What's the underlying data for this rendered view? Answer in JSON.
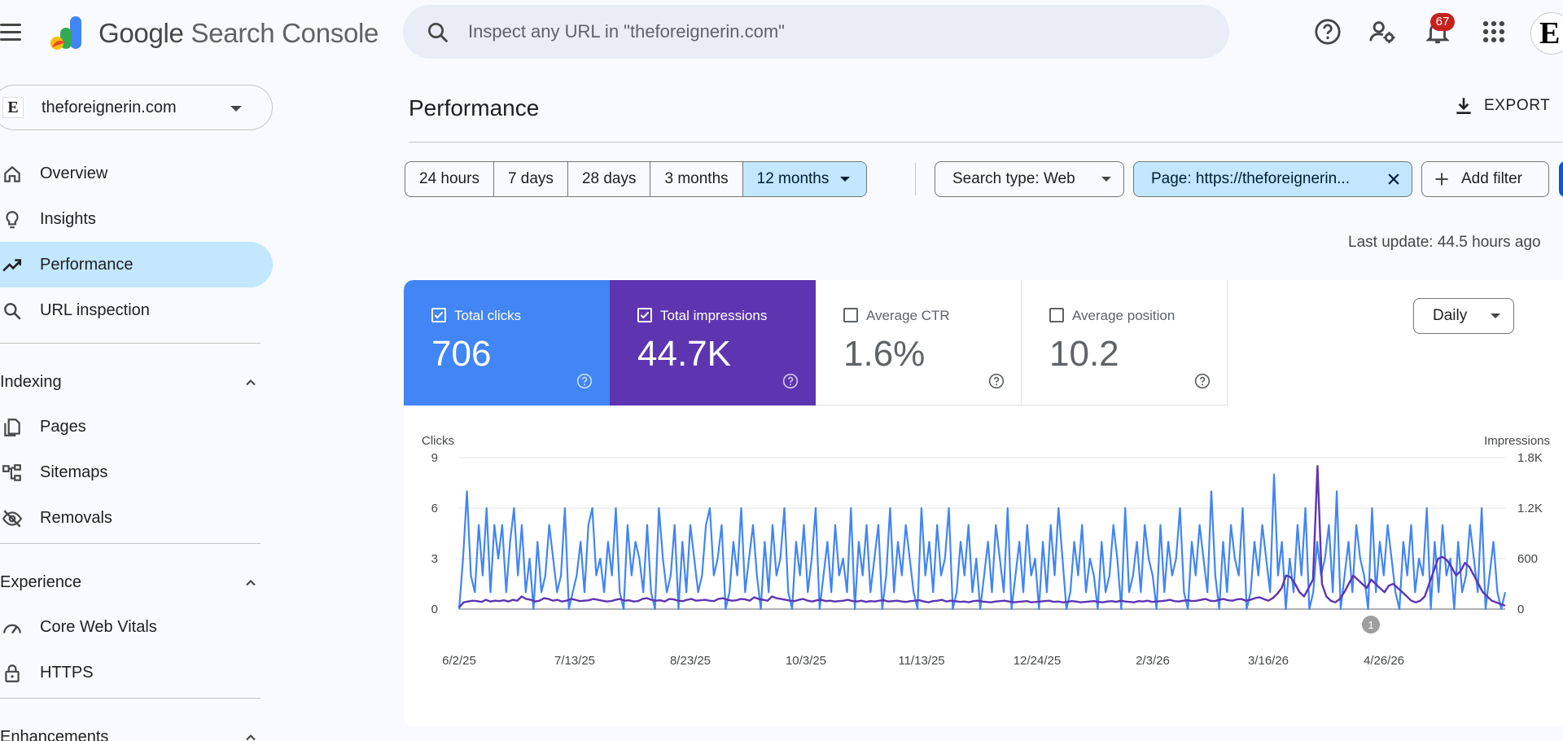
{
  "header": {
    "brand_google": "Google",
    "brand_product": "Search Console",
    "search_placeholder": "Inspect any URL in \"theforeignerin.com\"",
    "notification_count": "67",
    "avatar_text": "E"
  },
  "sidebar": {
    "property": "theforeignerin.com",
    "property_favicon": "E",
    "items_top": [
      {
        "label": "Overview",
        "icon": "home-icon"
      },
      {
        "label": "Insights",
        "icon": "lightbulb-icon"
      },
      {
        "label": "Performance",
        "icon": "trending-up-icon",
        "active": true
      },
      {
        "label": "URL inspection",
        "icon": "search-icon"
      }
    ],
    "sections": [
      {
        "title": "Indexing",
        "items": [
          {
            "label": "Pages",
            "icon": "pages-icon"
          },
          {
            "label": "Sitemaps",
            "icon": "sitemap-icon"
          },
          {
            "label": "Removals",
            "icon": "eye-off-icon"
          }
        ]
      },
      {
        "title": "Experience",
        "items": [
          {
            "label": "Core Web Vitals",
            "icon": "speed-icon"
          },
          {
            "label": "HTTPS",
            "icon": "lock-icon"
          }
        ]
      },
      {
        "title": "Enhancements",
        "items": []
      }
    ]
  },
  "main": {
    "title": "Performance",
    "export_label": "EXPORT",
    "date_ranges": [
      "24 hours",
      "7 days",
      "28 days",
      "3 months",
      "12 months"
    ],
    "selected_range": "12 months",
    "search_type": "Search type: Web",
    "page_filter": "Page: https://theforeignerin...",
    "add_filter": "Add filter",
    "last_update": "Last update: 44.5 hours ago",
    "granularity": "Daily",
    "metrics": [
      {
        "label": "Total clicks",
        "value": "706",
        "checked": true,
        "color": "#4285f4"
      },
      {
        "label": "Total impressions",
        "value": "44.7K",
        "checked": true,
        "color": "#5e35b1"
      },
      {
        "label": "Average CTR",
        "value": "1.6%",
        "checked": false
      },
      {
        "label": "Average position",
        "value": "10.2",
        "checked": false
      }
    ]
  },
  "chart_data": {
    "type": "line",
    "left_axis_title": "Clicks",
    "right_axis_title": "Impressions",
    "left_ticks": [
      "0",
      "3",
      "6",
      "9"
    ],
    "right_ticks": [
      "0",
      "600",
      "1.2K",
      "1.8K"
    ],
    "ylim_left": [
      0,
      9
    ],
    "ylim_right": [
      0,
      1800
    ],
    "x_ticks": [
      "6/2/25",
      "7/13/25",
      "8/23/25",
      "10/3/25",
      "11/13/25",
      "12/24/25",
      "2/3/26",
      "3/16/26",
      "4/26/26"
    ],
    "annotation": "1",
    "grid": true,
    "series": [
      {
        "name": "Clicks",
        "color": "#4285f4",
        "axis": "left",
        "values": [
          0,
          3,
          7,
          2,
          1,
          5,
          2,
          6,
          1,
          5,
          3,
          5,
          1,
          4,
          6,
          2,
          5,
          1,
          3,
          0,
          4,
          1,
          2,
          5,
          3,
          1,
          2,
          6,
          0,
          1,
          2,
          4,
          1,
          5,
          6,
          2,
          3,
          1,
          4,
          2,
          6,
          1,
          0,
          5,
          2,
          4,
          3,
          1,
          5,
          1,
          0,
          6,
          3,
          1,
          2,
          5,
          0,
          4,
          1,
          5,
          3,
          1,
          2,
          5,
          6,
          2,
          3,
          5,
          0,
          1,
          4,
          2,
          6,
          1,
          3,
          5,
          2,
          0,
          4,
          1,
          5,
          2,
          3,
          6,
          1,
          0,
          4,
          2,
          5,
          1,
          3,
          6,
          0,
          2,
          4,
          1,
          5,
          2,
          3,
          1,
          6,
          0,
          4,
          2,
          5,
          1,
          3,
          5,
          0,
          2,
          6,
          1,
          4,
          2,
          5,
          3,
          1,
          0,
          6,
          2,
          4,
          1,
          5,
          2,
          3,
          6,
          0,
          1,
          4,
          2,
          5,
          1,
          3,
          0,
          2,
          4,
          1,
          5,
          3,
          1,
          6,
          0,
          2,
          4,
          1,
          5,
          2,
          3,
          0,
          4,
          1,
          5,
          2,
          6,
          3,
          0,
          1,
          4,
          2,
          5,
          1,
          3,
          2,
          0,
          4,
          1,
          2,
          5,
          3,
          0,
          6,
          1,
          2,
          4,
          1,
          5,
          3,
          2,
          0,
          5,
          1,
          4,
          2,
          3,
          6,
          1,
          0,
          4,
          2,
          5,
          3,
          1,
          7,
          2,
          0,
          4,
          1,
          5,
          3,
          2,
          6,
          0,
          1,
          4,
          2,
          5,
          3,
          1,
          8,
          2,
          4,
          0,
          3,
          1,
          5,
          2,
          6,
          0,
          1,
          4,
          2,
          3,
          5,
          1,
          7,
          0,
          2,
          4,
          1,
          5,
          3,
          2,
          0,
          6,
          1,
          4,
          2,
          5,
          3,
          1,
          0,
          4,
          2,
          5,
          1,
          3,
          2,
          6,
          0,
          4,
          1,
          5,
          2,
          3,
          0,
          4,
          1,
          2,
          5,
          3,
          1,
          6,
          0,
          2,
          4,
          1,
          0,
          1
        ]
      },
      {
        "name": "Impressions",
        "color": "#5e35b1",
        "axis": "right",
        "values": [
          20,
          80,
          90,
          100,
          95,
          85,
          110,
          90,
          100,
          95,
          105,
          90,
          110,
          100,
          150,
          120,
          110,
          90,
          100,
          130,
          120,
          100,
          110,
          90,
          100,
          120,
          110,
          95,
          100,
          105,
          120,
          110,
          100,
          90,
          95,
          110,
          120,
          100,
          105,
          90,
          95,
          120,
          130,
          110,
          100,
          105,
          90,
          120,
          115,
          100,
          95,
          110,
          120,
          100,
          105,
          110,
          100,
          95,
          120,
          130,
          110,
          100,
          105,
          120,
          115,
          100,
          140,
          120,
          110,
          100,
          150,
          130,
          120,
          110,
          100,
          95,
          110,
          120,
          100,
          90,
          105,
          110,
          95,
          100,
          90,
          95,
          100,
          110,
          95,
          90,
          100,
          85,
          95,
          90,
          100,
          105,
          90,
          95,
          100,
          90,
          85,
          95,
          100,
          105,
          90,
          80,
          95,
          100,
          110,
          90,
          100,
          95,
          85,
          90,
          80,
          95,
          100,
          90,
          85,
          80,
          90,
          95,
          100,
          90,
          80,
          85,
          90,
          95,
          80,
          85,
          90,
          95,
          100,
          85,
          90,
          80,
          85,
          95,
          90,
          80,
          85,
          90,
          95,
          85,
          80,
          90,
          95,
          85,
          100,
          90,
          85,
          80,
          95,
          90,
          100,
          85,
          90,
          95,
          100,
          110,
          95,
          90,
          100,
          105,
          95,
          100,
          110,
          120,
          100,
          95,
          110,
          120,
          105,
          100,
          115,
          120,
          100,
          110,
          130,
          140,
          120,
          100,
          130,
          180,
          250,
          400,
          380,
          300,
          200,
          150,
          250,
          350,
          1700,
          300,
          150,
          100,
          80,
          120,
          200,
          300,
          400,
          350,
          300,
          250,
          350,
          300,
          250,
          200,
          280,
          300,
          250,
          200,
          150,
          100,
          80,
          100,
          150,
          300,
          450,
          600,
          620,
          580,
          500,
          400,
          450,
          550,
          500,
          400,
          300,
          200,
          150,
          100,
          80,
          60,
          40
        ]
      }
    ]
  }
}
